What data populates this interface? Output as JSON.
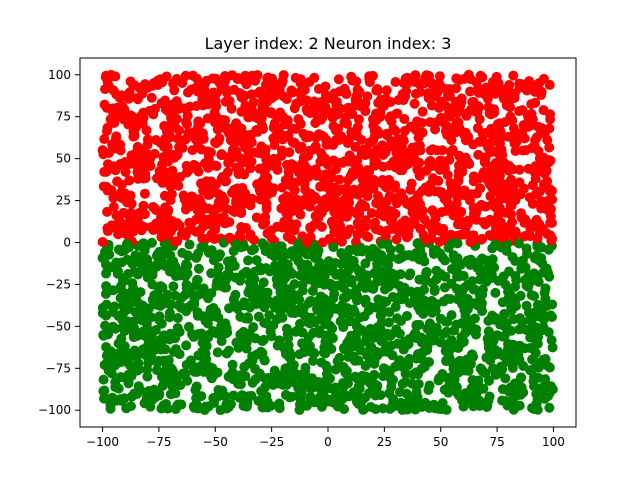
{
  "chart_data": {
    "type": "scatter",
    "title": "Layer index: 2 Neuron index: 3",
    "xlabel": "",
    "ylabel": "",
    "xlim": [
      -110,
      110
    ],
    "ylim": [
      -110,
      110
    ],
    "x_ticks": [
      -100,
      -75,
      -50,
      -25,
      0,
      25,
      50,
      75,
      100
    ],
    "y_ticks": [
      -100,
      -75,
      -50,
      -25,
      0,
      25,
      50,
      75,
      100
    ],
    "grid": false,
    "legend": "none",
    "sample_domain": {
      "x": [
        -100,
        100
      ],
      "y": [
        -100,
        100
      ]
    },
    "classification_threshold_y": 0,
    "series": [
      {
        "color": "#ff0000",
        "x": [
          -100,
          100
        ],
        "y": [
          0,
          100
        ]
      },
      {
        "color": "#008000",
        "x": [
          -100,
          100
        ],
        "y": [
          -100,
          0
        ]
      }
    ]
  }
}
